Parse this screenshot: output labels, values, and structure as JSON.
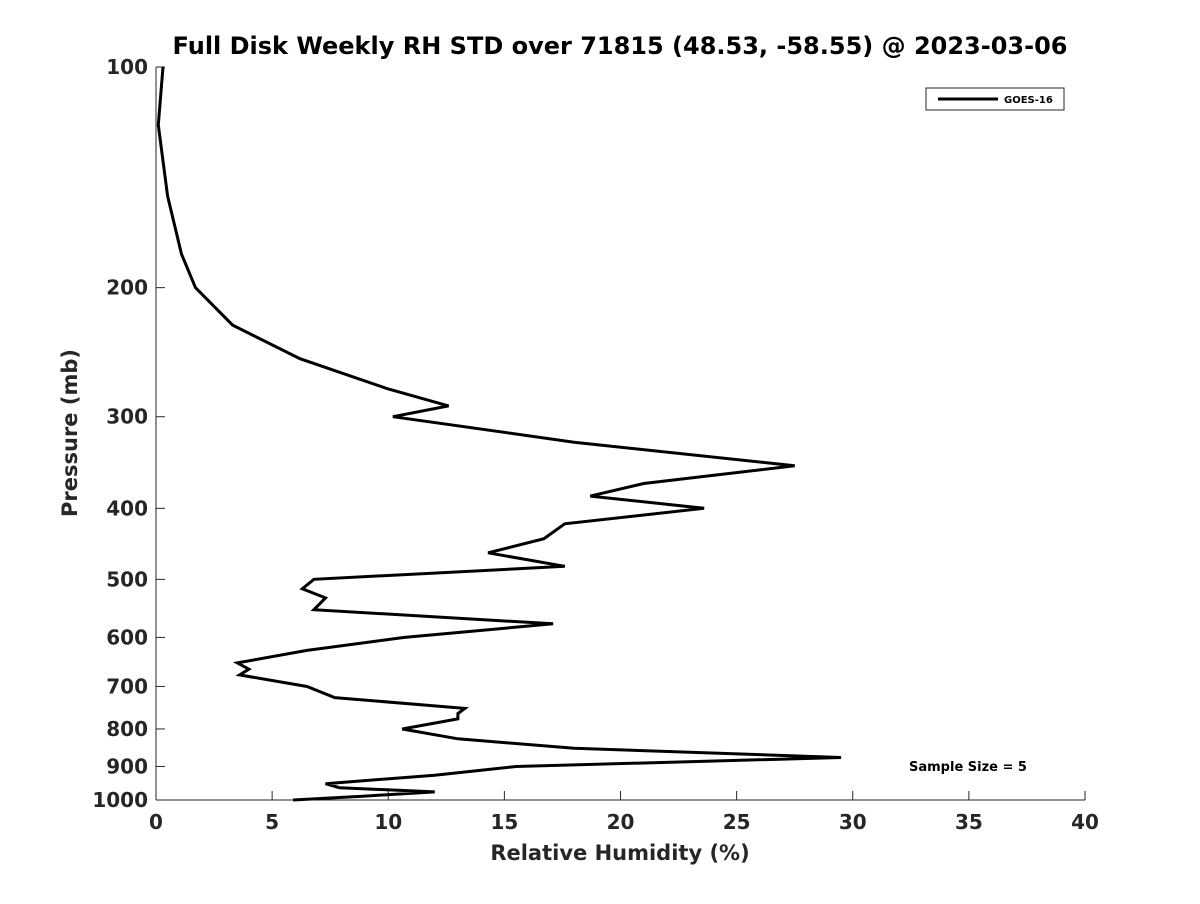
{
  "chart_data": {
    "type": "line",
    "title": "Full Disk Weekly RH STD over 71815 (48.53, -58.55) @ 2023-03-06",
    "xlabel": "Relative Humidity (%)",
    "ylabel": "Pressure (mb)",
    "xlim": [
      0,
      40
    ],
    "ylim": [
      100,
      1000
    ],
    "y_scale": "log",
    "y_reversed": true,
    "grid": false,
    "x_ticks": [
      0,
      5,
      10,
      15,
      20,
      25,
      30,
      35,
      40
    ],
    "x_tick_labels": [
      "0",
      "5",
      "10",
      "15",
      "20",
      "25",
      "30",
      "35",
      "40"
    ],
    "y_ticks": [
      100,
      200,
      300,
      400,
      500,
      600,
      700,
      800,
      900,
      1000
    ],
    "y_tick_labels": [
      "100",
      "200",
      "300",
      "400",
      "500",
      "600",
      "700",
      "800",
      "900",
      "1000"
    ],
    "legend_position": "top-right",
    "annotation": "Sample Size = 5",
    "series": [
      {
        "name": "GOES-16",
        "color": "#000000",
        "points": [
          [
            0.3,
            100
          ],
          [
            0.1,
            120
          ],
          [
            0.5,
            150
          ],
          [
            1.1,
            180
          ],
          [
            1.7,
            200
          ],
          [
            3.3,
            225
          ],
          [
            6.2,
            250
          ],
          [
            10.0,
            275
          ],
          [
            12.6,
            290
          ],
          [
            10.2,
            300
          ],
          [
            18.0,
            325
          ],
          [
            27.5,
            350
          ],
          [
            21.0,
            370
          ],
          [
            18.7,
            385
          ],
          [
            23.6,
            400
          ],
          [
            17.6,
            420
          ],
          [
            16.7,
            440
          ],
          [
            14.3,
            460
          ],
          [
            17.6,
            480
          ],
          [
            6.8,
            500
          ],
          [
            6.3,
            515
          ],
          [
            7.3,
            530
          ],
          [
            6.8,
            550
          ],
          [
            17.1,
            575
          ],
          [
            10.7,
            600
          ],
          [
            6.5,
            625
          ],
          [
            3.5,
            650
          ],
          [
            4.0,
            663
          ],
          [
            3.6,
            675
          ],
          [
            6.5,
            700
          ],
          [
            7.7,
            725
          ],
          [
            13.3,
            750
          ],
          [
            13.0,
            762
          ],
          [
            13.0,
            775
          ],
          [
            10.6,
            800
          ],
          [
            13.0,
            825
          ],
          [
            18.0,
            850
          ],
          [
            29.5,
            875
          ],
          [
            15.5,
            900
          ],
          [
            12.0,
            925
          ],
          [
            7.3,
            950
          ],
          [
            7.9,
            962
          ],
          [
            12.0,
            975
          ],
          [
            8.9,
            988
          ],
          [
            5.9,
            1000
          ]
        ]
      }
    ]
  }
}
